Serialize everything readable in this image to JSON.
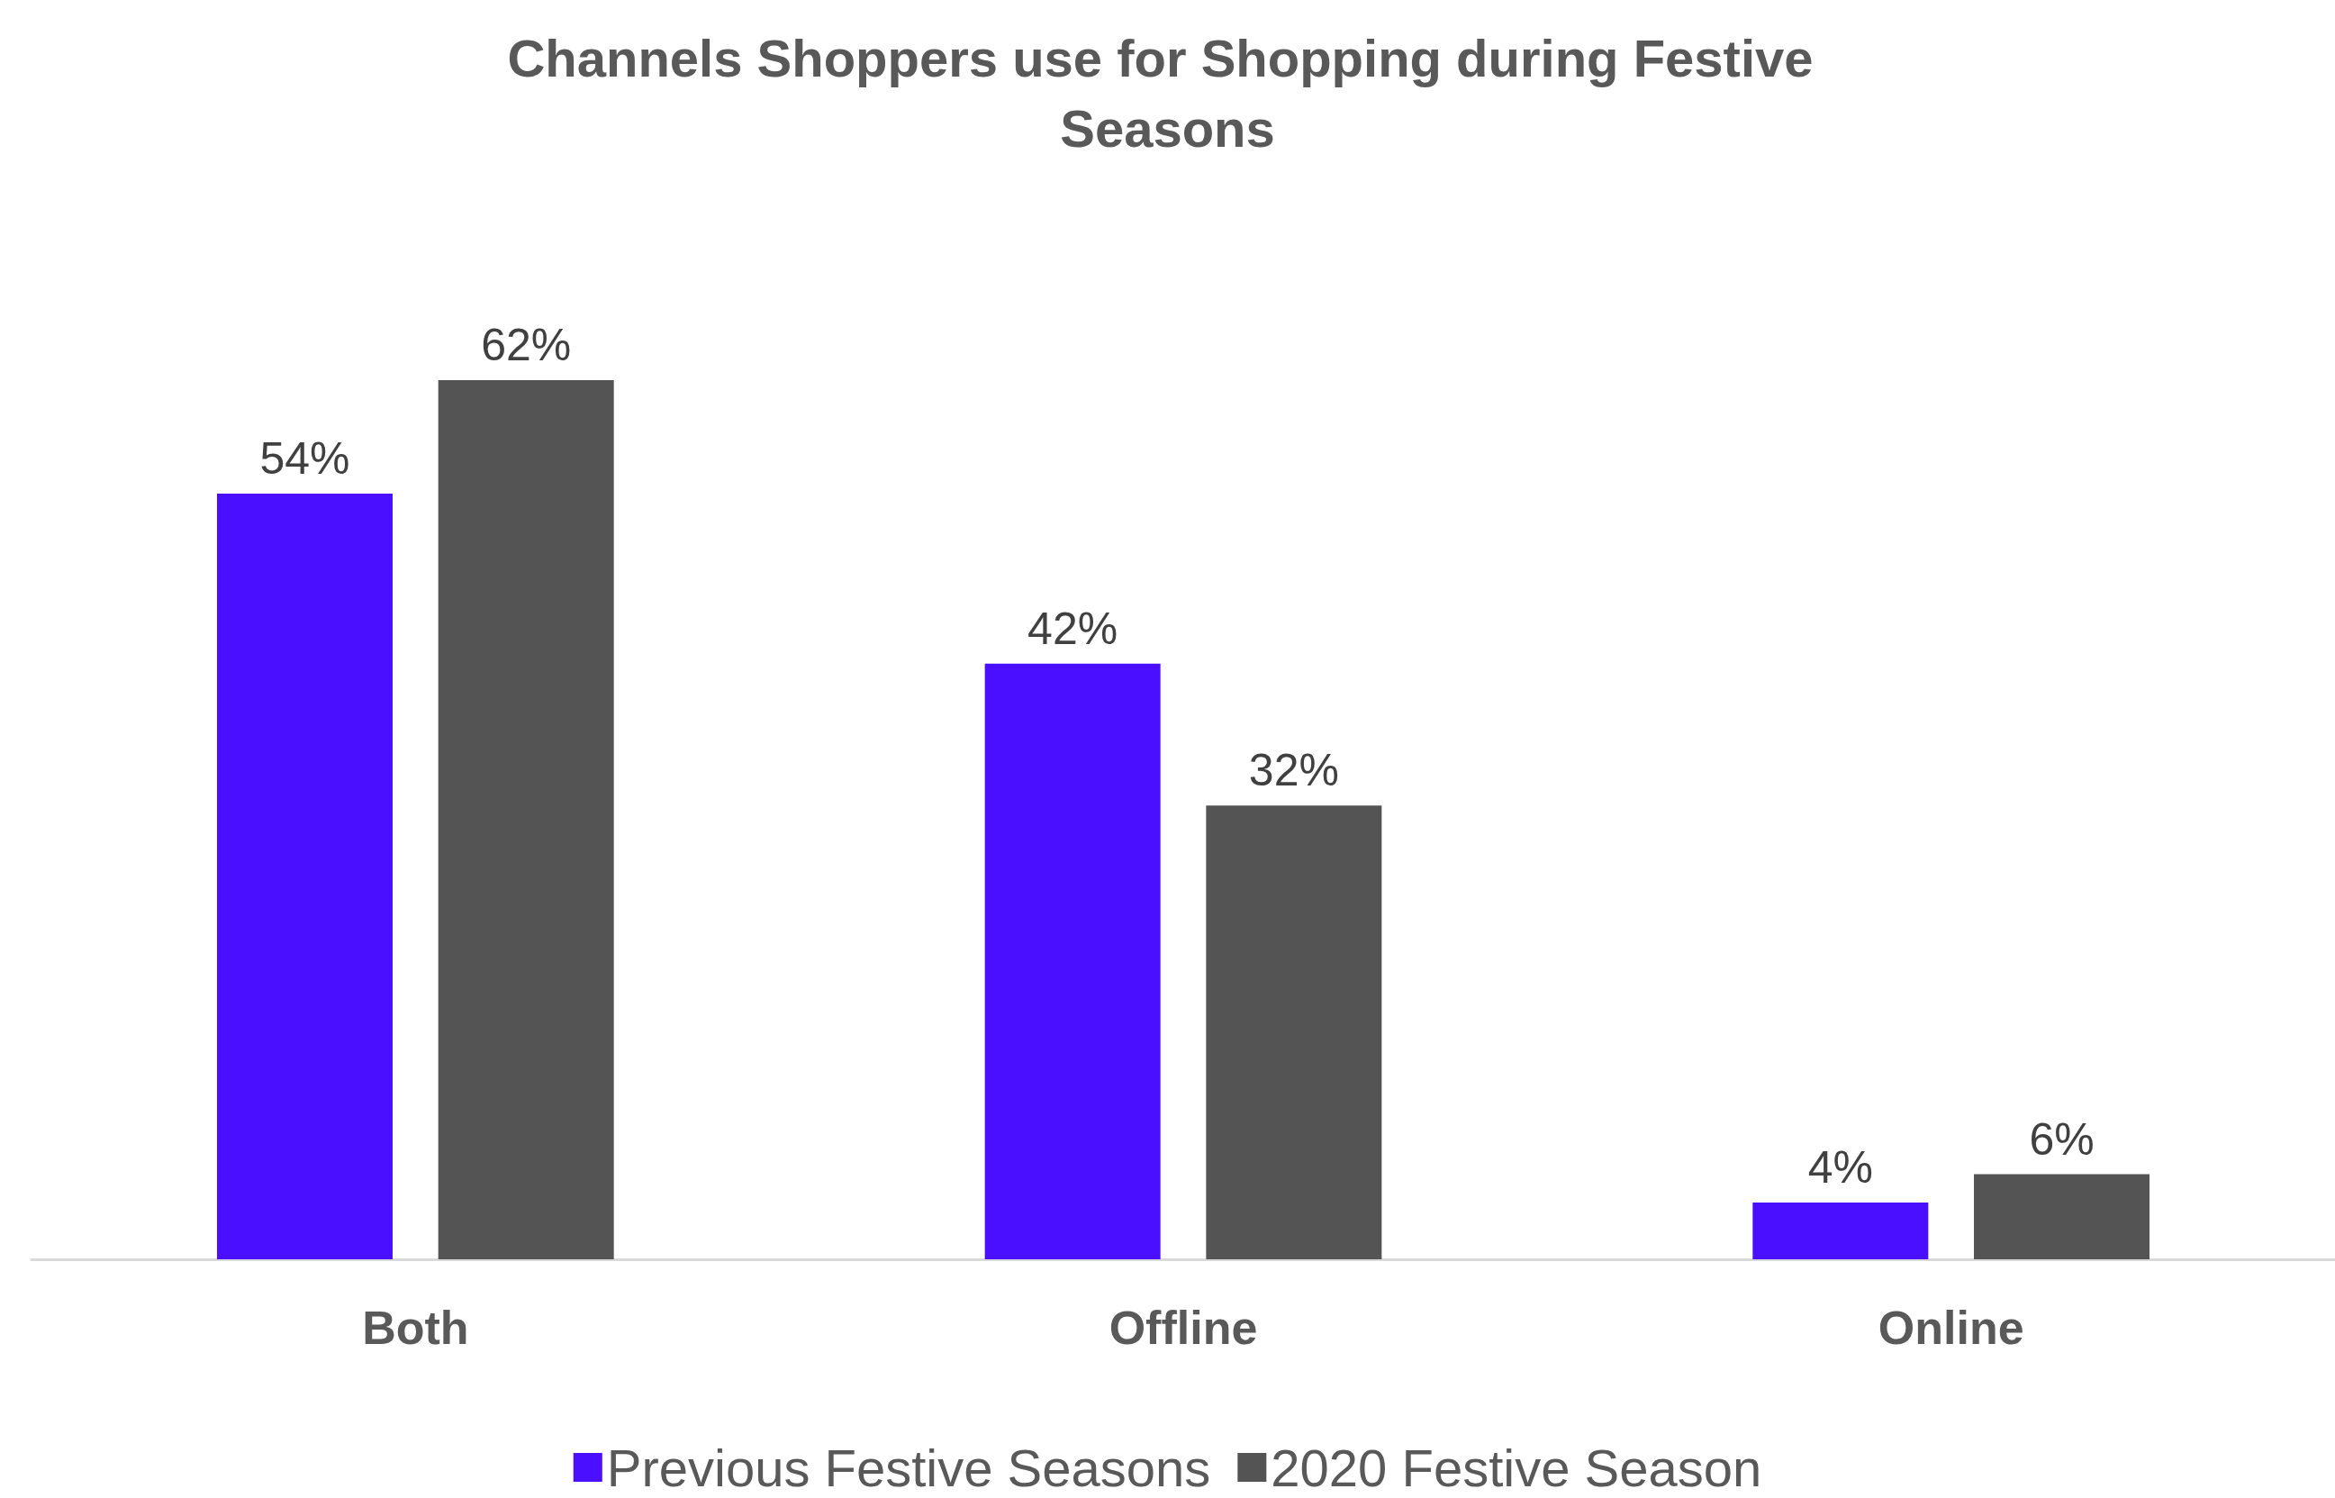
{
  "chart_data": {
    "type": "bar",
    "title": "Channels Shoppers use for Shopping during Festive Seasons",
    "categories": [
      "Both",
      "Offline",
      "Online"
    ],
    "series": [
      {
        "name": "Previous Festive Seasons",
        "color": "#4a0fff",
        "values": [
          54,
          42,
          4
        ],
        "value_labels": [
          "54%",
          "42%",
          "4%"
        ]
      },
      {
        "name": "2020 Festive Season",
        "color": "#545454",
        "values": [
          62,
          32,
          6
        ],
        "value_labels": [
          "62%",
          "32%",
          "6%"
        ]
      }
    ],
    "grid": false,
    "legend": "bottom"
  }
}
